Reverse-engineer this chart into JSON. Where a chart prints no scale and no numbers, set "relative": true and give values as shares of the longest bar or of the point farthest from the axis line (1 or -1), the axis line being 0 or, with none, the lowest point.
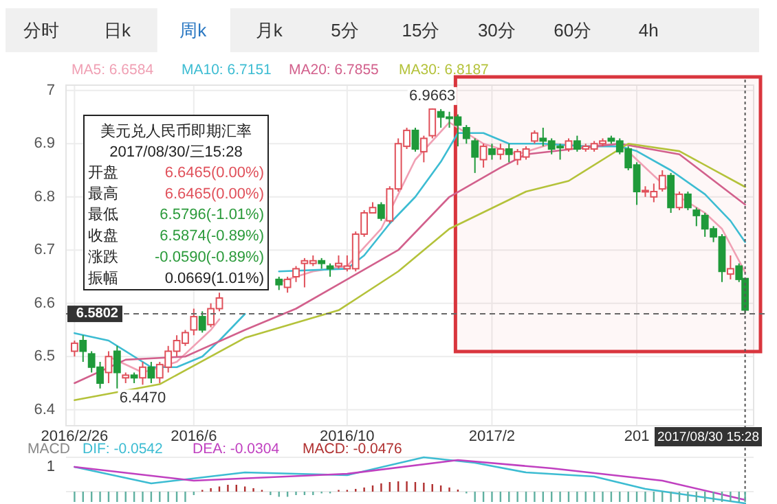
{
  "chart_data": [
    {
      "type": "candlestick",
      "annotations": [
        "分时",
        "日k",
        "周k",
        "月k",
        "5分",
        "15分",
        "30分",
        "60分",
        "4h",
        "美元兑人民币即期汇率",
        "2017/08/30/三15:28",
        "开盘",
        "6.6465(0.00%)",
        "最高",
        "6.6465(0.00%)",
        "最低",
        "6.5796(-1.01%)",
        "收盘",
        "6.5874(-0.89%)",
        "涨跌",
        "-0.0590(-0.89%)",
        "振幅",
        "0.0669(1.01%)",
        {
          "text": "6.9663",
          "x": "2016-12-16",
          "y": 6.9663
        },
        {
          "text": "6.4470",
          "x": "2016-04-22",
          "y": 6.447
        }
      ],
      "x": [
        "2016-02-26",
        "2016-03-04",
        "2016-03-11",
        "2016-03-18",
        "2016-03-25",
        "2016-04-01",
        "2016-04-08",
        "2016-04-15",
        "2016-04-22",
        "2016-04-29",
        "2016-05-06",
        "2016-05-13",
        "2016-05-20",
        "2016-05-27",
        "2016-06-03",
        "2016-06-10",
        "2016-06-17",
        "2016-06-24",
        "2016-08-12",
        "2016-08-19",
        "2016-08-26",
        "2016-09-02",
        "2016-09-09",
        "2016-09-16",
        "2016-09-23",
        "2016-09-30",
        "2016-10-07",
        "2016-10-14",
        "2016-10-21",
        "2016-10-28",
        "2016-11-04",
        "2016-11-11",
        "2016-11-18",
        "2016-11-25",
        "2016-12-02",
        "2016-12-09",
        "2016-12-16",
        "2016-12-23",
        "2016-12-30",
        "2017-01-06",
        "2017-01-13",
        "2017-01-20",
        "2017-01-27",
        "2017-02-03",
        "2017-02-10",
        "2017-02-17",
        "2017-02-24",
        "2017-03-03",
        "2017-03-10",
        "2017-03-17",
        "2017-03-24",
        "2017-03-31",
        "2017-04-07",
        "2017-04-14",
        "2017-04-21",
        "2017-04-28",
        "2017-05-05",
        "2017-05-12",
        "2017-05-19",
        "2017-05-26",
        "2017-06-02",
        "2017-06-09",
        "2017-06-16",
        "2017-06-23",
        "2017-06-30",
        "2017-07-07",
        "2017-07-14",
        "2017-07-21",
        "2017-07-28",
        "2017-08-04",
        "2017-08-11",
        "2017-08-18",
        "2017-08-25",
        "2017-08-30"
      ],
      "ohlc": [
        [
          6.51,
          6.53,
          6.5,
          6.525
        ],
        [
          6.53,
          6.54,
          6.49,
          6.51
        ],
        [
          6.505,
          6.51,
          6.47,
          6.48
        ],
        [
          6.48,
          6.49,
          6.44,
          6.45
        ],
        [
          6.47,
          6.51,
          6.45,
          6.5
        ],
        [
          6.51,
          6.52,
          6.44,
          6.47
        ],
        [
          6.46,
          6.47,
          6.45,
          6.465
        ],
        [
          6.465,
          6.47,
          6.45,
          6.46
        ],
        [
          6.46,
          6.49,
          6.447,
          6.48
        ],
        [
          6.48,
          6.49,
          6.45,
          6.46
        ],
        [
          6.46,
          6.49,
          6.45,
          6.485
        ],
        [
          6.48,
          6.52,
          6.47,
          6.51
        ],
        [
          6.51,
          6.54,
          6.5,
          6.53
        ],
        [
          6.525,
          6.55,
          6.52,
          6.545
        ],
        [
          6.55,
          6.59,
          6.54,
          6.575
        ],
        [
          6.575,
          6.585,
          6.545,
          6.55
        ],
        [
          6.56,
          6.6,
          6.555,
          6.59
        ],
        [
          6.59,
          6.62,
          6.585,
          6.61
        ],
        [
          6.645,
          6.65,
          6.625,
          6.635
        ],
        [
          6.63,
          6.65,
          6.62,
          6.645
        ],
        [
          6.65,
          6.67,
          6.64,
          6.665
        ],
        [
          6.675,
          6.685,
          6.63,
          6.68
        ],
        [
          6.675,
          6.69,
          6.67,
          6.68
        ],
        [
          6.68,
          6.685,
          6.665,
          6.675
        ],
        [
          6.67,
          6.675,
          6.65,
          6.665
        ],
        [
          6.67,
          6.69,
          6.665,
          6.675
        ],
        [
          6.665,
          6.69,
          6.66,
          6.67
        ],
        [
          6.665,
          6.735,
          6.66,
          6.73
        ],
        [
          6.73,
          6.775,
          6.725,
          6.77
        ],
        [
          6.77,
          6.79,
          6.77,
          6.78
        ],
        [
          6.785,
          6.79,
          6.755,
          6.76
        ],
        [
          6.755,
          6.82,
          6.75,
          6.815
        ],
        [
          6.815,
          6.91,
          6.81,
          6.9
        ],
        [
          6.895,
          6.93,
          6.89,
          6.925
        ],
        [
          6.925,
          6.93,
          6.885,
          6.89
        ],
        [
          6.885,
          6.915,
          6.865,
          6.91
        ],
        [
          6.915,
          6.9663,
          6.91,
          6.965
        ],
        [
          6.96,
          6.965,
          6.93,
          6.95
        ],
        [
          6.95,
          6.96,
          6.93,
          6.948
        ],
        [
          6.95,
          6.955,
          6.895,
          6.935
        ],
        [
          6.93,
          6.935,
          6.9,
          6.91
        ],
        [
          6.905,
          6.91,
          6.845,
          6.875
        ],
        [
          6.87,
          6.9,
          6.855,
          6.895
        ],
        [
          6.89,
          6.9,
          6.87,
          6.88
        ],
        [
          6.88,
          6.9,
          6.87,
          6.89
        ],
        [
          6.89,
          6.9,
          6.865,
          6.88
        ],
        [
          6.87,
          6.89,
          6.86,
          6.885
        ],
        [
          6.875,
          6.895,
          6.87,
          6.89
        ],
        [
          6.905,
          6.925,
          6.9,
          6.92
        ],
        [
          6.91,
          6.93,
          6.895,
          6.905
        ],
        [
          6.905,
          6.91,
          6.88,
          6.89
        ],
        [
          6.895,
          6.9,
          6.87,
          6.893
        ],
        [
          6.89,
          6.91,
          6.885,
          6.905
        ],
        [
          6.905,
          6.915,
          6.885,
          6.89
        ],
        [
          6.89,
          6.9,
          6.885,
          6.895
        ],
        [
          6.89,
          6.905,
          6.885,
          6.9
        ],
        [
          6.9,
          6.91,
          6.895,
          6.905
        ],
        [
          6.91,
          6.915,
          6.9,
          6.905
        ],
        [
          6.905,
          6.91,
          6.88,
          6.885
        ],
        [
          6.89,
          6.895,
          6.85,
          6.855
        ],
        [
          6.86,
          6.865,
          6.785,
          6.81
        ],
        [
          6.81,
          6.82,
          6.8,
          6.812
        ],
        [
          6.8,
          6.825,
          6.79,
          6.81
        ],
        [
          6.815,
          6.85,
          6.81,
          6.84
        ],
        [
          6.84,
          6.845,
          6.77,
          6.78
        ],
        [
          6.78,
          6.81,
          6.775,
          6.805
        ],
        [
          6.805,
          6.81,
          6.775,
          6.78
        ],
        [
          6.775,
          6.78,
          6.745,
          6.765
        ],
        [
          6.765,
          6.77,
          6.725,
          6.74
        ],
        [
          6.74,
          6.745,
          6.715,
          6.725
        ],
        [
          6.725,
          6.73,
          6.64,
          6.66
        ],
        [
          6.655,
          6.69,
          6.645,
          6.665
        ],
        [
          6.67,
          6.675,
          6.64,
          6.645
        ],
        [
          6.6465,
          6.6465,
          6.5796,
          6.5874
        ]
      ],
      "series": [
        {
          "name": "MA5: 6.6584",
          "type": "line",
          "color": "#f0a0b4",
          "x": [
            "2016-03-25",
            "2016-04-22",
            "2016-05-20",
            "2016-06-17",
            "2016-06-24"
          ],
          "values": [
            6.5,
            6.47,
            6.49,
            6.55,
            6.57
          ]
        },
        {
          "type": "line",
          "color": "#f0a0b4",
          "x": [
            "2016-08-12",
            "2016-09-09",
            "2016-10-07",
            "2016-11-04",
            "2016-12-02",
            "2016-12-30",
            "2017-01-27",
            "2017-02-24",
            "2017-03-24",
            "2017-04-21",
            "2017-05-19",
            "2017-06-02",
            "2017-06-30",
            "2017-07-28",
            "2017-08-11",
            "2017-08-30"
          ],
          "values": [
            6.64,
            6.66,
            6.67,
            6.74,
            6.87,
            6.94,
            6.9,
            6.88,
            6.9,
            6.895,
            6.9,
            6.87,
            6.81,
            6.77,
            6.74,
            6.6584
          ]
        },
        {
          "name": "MA10: 6.7151",
          "type": "line",
          "color": "#3cbcd2",
          "x": [
            "2016-02-26",
            "2016-03-25",
            "2016-04-29",
            "2016-05-20",
            "2016-06-10",
            "2016-06-24",
            "2016-07-15"
          ],
          "values": [
            6.544,
            6.53,
            6.48,
            6.48,
            6.5,
            6.53,
            6.58
          ]
        },
        {
          "type": "line",
          "color": "#3cbcd2",
          "x": [
            "2016-08-12",
            "2016-10-07",
            "2016-10-21",
            "2016-11-11",
            "2016-12-02",
            "2016-12-23",
            "2017-01-06",
            "2017-01-27",
            "2017-02-17",
            "2017-02-24",
            "2017-03-17",
            "2017-04-21",
            "2017-05-19",
            "2017-06-02",
            "2017-06-30",
            "2017-07-28",
            "2017-08-18",
            "2017-08-30"
          ],
          "values": [
            6.66,
            6.665,
            6.69,
            6.75,
            6.8,
            6.866,
            6.92,
            6.92,
            6.9,
            6.9,
            6.9,
            6.895,
            6.895,
            6.886,
            6.85,
            6.805,
            6.755,
            6.7151
          ]
        },
        {
          "name": "MA20: 6.7855",
          "type": "line",
          "color": "#d2608c",
          "x": [
            "2016-02-26",
            "2016-04-08",
            "2016-05-27",
            "2016-07-15",
            "2016-08-05",
            "2016-08-26",
            "2016-10-07",
            "2016-11-18",
            "2016-12-30",
            "2017-02-10",
            "2017-03-03",
            "2017-05-19",
            "2017-07-07",
            "2017-08-30"
          ],
          "values": [
            6.45,
            6.494,
            6.5,
            6.55,
            6.57,
            6.59,
            6.645,
            6.7,
            6.8,
            6.855,
            6.88,
            6.9,
            6.88,
            6.7855
          ]
        },
        {
          "name": "MA30: 6.8187",
          "type": "line",
          "color": "#b4c23a",
          "x": [
            "2016-02-26",
            "2016-05-06",
            "2016-07-15",
            "2016-09-30",
            "2016-11-18",
            "2016-12-30",
            "2017-03-03",
            "2017-04-07",
            "2017-05-26",
            "2017-07-07",
            "2017-08-30"
          ],
          "values": [
            6.418,
            6.448,
            6.535,
            6.587,
            6.66,
            6.74,
            6.81,
            6.83,
            6.9,
            6.886,
            6.8187
          ]
        }
      ],
      "xlim": [
        "2016-02-19",
        "2017-09-06"
      ],
      "xticks": [
        {
          "value": "2016-02-26",
          "label": "2016/2/26"
        },
        {
          "value": "2016-06-03",
          "label": "2016/6"
        },
        {
          "value": "2016-10-07",
          "label": "2016/10"
        },
        {
          "value": "2017-02-03",
          "label": "2017/2"
        },
        {
          "value": "2017-06-02",
          "label": "201"
        }
      ],
      "ylim": [
        6.37,
        7.01
      ],
      "yticks": [
        6.4,
        6.5,
        6.6,
        6.7,
        6.8,
        6.9,
        7
      ],
      "grid": true,
      "legend": "top",
      "ref_lines": [
        {
          "axis": "y",
          "value": 6.5802,
          "label": "6.5802",
          "line_style": "dashed"
        },
        {
          "axis": "x",
          "value": "2017-08-30",
          "label": "2017/08/30 15:28",
          "line_style": "dotted"
        }
      ],
      "bands": [
        {
          "axis": "x",
          "from": "2017-01-04",
          "to": "2017-09-06",
          "color": "#d9363e"
        }
      ]
    },
    {
      "type": "line",
      "relative": true,
      "title": "MACD",
      "annotations": [
        "1"
      ],
      "x": [
        "2016-02-26",
        "2016-03-04",
        "2016-03-11",
        "2016-03-18",
        "2016-03-25",
        "2016-04-01",
        "2016-04-08",
        "2016-04-15",
        "2016-04-22",
        "2016-04-29",
        "2016-05-06",
        "2016-05-13",
        "2016-05-20",
        "2016-05-27",
        "2016-06-03",
        "2016-06-10",
        "2016-06-17",
        "2016-06-24",
        "2016-07-01",
        "2016-07-08",
        "2016-07-15",
        "2016-07-22",
        "2016-07-29",
        "2016-08-05",
        "2016-08-12",
        "2016-08-19",
        "2016-08-26",
        "2016-09-02",
        "2016-09-09",
        "2016-09-16",
        "2016-09-23",
        "2016-09-30",
        "2016-10-07",
        "2016-10-14",
        "2016-10-21",
        "2016-10-28",
        "2016-11-04",
        "2016-11-11",
        "2016-11-18",
        "2016-11-25",
        "2016-12-02",
        "2016-12-09",
        "2016-12-16",
        "2016-12-23",
        "2016-12-30",
        "2017-01-06",
        "2017-01-13",
        "2017-01-20",
        "2017-01-27",
        "2017-02-03",
        "2017-02-10",
        "2017-02-17",
        "2017-02-24",
        "2017-03-03",
        "2017-03-10",
        "2017-03-17",
        "2017-03-24",
        "2017-03-31",
        "2017-04-07",
        "2017-04-14",
        "2017-04-21",
        "2017-04-28",
        "2017-05-05",
        "2017-05-12",
        "2017-05-19",
        "2017-05-26",
        "2017-06-02",
        "2017-06-09",
        "2017-06-16",
        "2017-06-23",
        "2017-06-30",
        "2017-07-07",
        "2017-07-14",
        "2017-07-21",
        "2017-07-28",
        "2017-08-04",
        "2017-08-11",
        "2017-08-18",
        "2017-08-25",
        "2017-08-30"
      ],
      "series": [
        {
          "name": "DIF: -0.0542",
          "type": "line",
          "color": "#3cbcd2",
          "x": [
            "2016-02-26",
            "2016-04-29",
            "2016-07-15",
            "2016-10-07",
            "2016-12-09",
            "2017-01-20",
            "2017-03-03",
            "2017-04-28",
            "2017-06-09",
            "2017-08-30"
          ],
          "values": [
            0.72,
            0.24,
            0.56,
            0.48,
            1.0,
            0.84,
            0.56,
            0.44,
            0.08,
            -0.34
          ]
        },
        {
          "name": "DEA: -0.0304",
          "type": "line",
          "color": "#c040c0",
          "x": [
            "2016-02-26",
            "2016-06-03",
            "2016-10-07",
            "2017-01-06",
            "2017-03-24",
            "2017-06-23",
            "2017-08-30"
          ],
          "values": [
            0.72,
            0.32,
            0.52,
            0.92,
            0.68,
            0.32,
            -0.24
          ]
        },
        {
          "name": "MACD: -0.0476",
          "type": "bar",
          "color": "#b03030",
          "values": [
            -0.3,
            -0.3,
            -0.3,
            -0.3,
            -0.3,
            -0.3,
            -0.3,
            -0.3,
            -0.3,
            -0.3,
            -0.3,
            -0.3,
            -0.3,
            -0.3,
            -0.1,
            0.05,
            0.1,
            0.15,
            0.2,
            0.2,
            0.15,
            0.1,
            0.05,
            -0.1,
            -0.15,
            -0.15,
            -0.1,
            -0.1,
            -0.1,
            -0.05,
            -0.05,
            0.05,
            0.05,
            0.08,
            0.12,
            0.18,
            0.24,
            0.28,
            0.3,
            0.3,
            0.28,
            0.26,
            0.22,
            0.18,
            0.12,
            0.06,
            -0.05,
            -0.3,
            -0.3,
            -0.3,
            -0.3,
            -0.3,
            -0.3,
            -0.3,
            -0.3,
            -0.3,
            -0.3,
            -0.3,
            -0.3,
            -0.3,
            -0.3,
            -0.3,
            -0.3,
            -0.3,
            -0.3,
            -0.3,
            -0.3,
            -0.3,
            -0.3,
            -0.3,
            -0.3,
            -0.3,
            -0.3,
            -0.3,
            -0.3,
            -0.3,
            -0.3,
            -0.3,
            -0.3,
            -0.3
          ],
          "colors": [
            "#5fb0a0",
            "#5fb0a0",
            "#5fb0a0",
            "#5fb0a0",
            "#5fb0a0",
            "#5fb0a0",
            "#5fb0a0",
            "#5fb0a0",
            "#5fb0a0",
            "#5fb0a0",
            "#5fb0a0",
            "#5fb0a0",
            "#5fb0a0",
            "#5fb0a0",
            "#5fb0a0",
            "#b03030",
            "#b03030",
            "#b03030",
            "#b03030",
            "#b03030",
            "#b03030",
            "#b03030",
            "#b03030",
            "#5fb0a0",
            "#5fb0a0",
            "#5fb0a0",
            "#5fb0a0",
            "#5fb0a0",
            "#5fb0a0",
            "#5fb0a0",
            "#5fb0a0",
            "#b03030",
            "#b03030",
            "#b03030",
            "#b03030",
            "#b03030",
            "#b03030",
            "#b03030",
            "#b03030",
            "#b03030",
            "#b03030",
            "#b03030",
            "#b03030",
            "#b03030",
            "#b03030",
            "#b03030",
            "#5fb0a0",
            "#5fb0a0",
            "#5fb0a0",
            "#5fb0a0",
            "#5fb0a0",
            "#5fb0a0",
            "#5fb0a0",
            "#5fb0a0",
            "#5fb0a0",
            "#5fb0a0",
            "#5fb0a0",
            "#5fb0a0",
            "#5fb0a0",
            "#5fb0a0",
            "#5fb0a0",
            "#5fb0a0",
            "#5fb0a0",
            "#5fb0a0",
            "#5fb0a0",
            "#5fb0a0",
            "#5fb0a0",
            "#5fb0a0",
            "#5fb0a0",
            "#5fb0a0",
            "#5fb0a0",
            "#5fb0a0",
            "#5fb0a0",
            "#5fb0a0",
            "#5fb0a0",
            "#5fb0a0",
            "#5fb0a0",
            "#5fb0a0",
            "#5fb0a0",
            "#5fb0a0"
          ]
        }
      ],
      "xlim": [
        "2016-02-19",
        "2017-09-06"
      ],
      "legend": "top"
    }
  ]
}
